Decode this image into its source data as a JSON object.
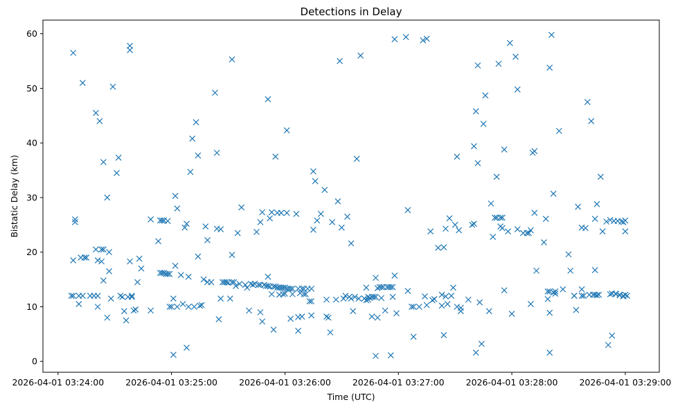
{
  "chart_data": {
    "type": "scatter",
    "title": "Detections in Delay",
    "xlabel": "Time (UTC)",
    "ylabel": "Bistatic Delay (km)",
    "x_unit": "seconds after 2026-04-01 03:24:00",
    "xlim": [
      -8,
      318
    ],
    "ylim": [
      -2,
      62.5
    ],
    "x_ticks": [
      {
        "value": 0,
        "label": "2026-04-01 03:24:00"
      },
      {
        "value": 60,
        "label": "2026-04-01 03:25:00"
      },
      {
        "value": 120,
        "label": "2026-04-01 03:26:00"
      },
      {
        "value": 180,
        "label": "2026-04-01 03:27:00"
      },
      {
        "value": 240,
        "label": "2026-04-01 03:28:00"
      },
      {
        "value": 300,
        "label": "2026-04-01 03:29:00"
      }
    ],
    "y_ticks": [
      {
        "value": 0,
        "label": "0"
      },
      {
        "value": 10,
        "label": "10"
      },
      {
        "value": 20,
        "label": "20"
      },
      {
        "value": 30,
        "label": "30"
      },
      {
        "value": 40,
        "label": "40"
      },
      {
        "value": 50,
        "label": "50"
      },
      {
        "value": 60,
        "label": "60"
      }
    ],
    "marker": "x",
    "color": "#1f77b4",
    "points": [
      [
        7,
        12
      ],
      [
        8,
        12
      ],
      [
        8,
        18.5
      ],
      [
        8,
        56.5
      ],
      [
        9,
        26
      ],
      [
        9,
        25.5
      ],
      [
        11,
        10.5
      ],
      [
        11,
        12
      ],
      [
        12,
        19
      ],
      [
        13,
        12
      ],
      [
        13,
        51
      ],
      [
        14,
        19
      ],
      [
        15,
        19
      ],
      [
        17,
        12
      ],
      [
        19,
        12
      ],
      [
        20,
        45.5
      ],
      [
        20,
        20.5
      ],
      [
        21,
        10
      ],
      [
        21,
        18.5
      ],
      [
        21,
        12
      ],
      [
        22,
        44
      ],
      [
        23,
        18.3
      ],
      [
        23,
        20.5
      ],
      [
        24,
        20.5
      ],
      [
        24,
        36.5
      ],
      [
        24,
        14.8
      ],
      [
        26,
        8
      ],
      [
        26,
        30
      ],
      [
        27,
        16.5
      ],
      [
        27,
        20
      ],
      [
        28,
        11.5
      ],
      [
        29,
        50.3
      ],
      [
        31,
        34.5
      ],
      [
        32,
        37.3
      ],
      [
        33,
        12
      ],
      [
        34,
        11.8
      ],
      [
        35,
        9.2
      ],
      [
        36,
        7.5
      ],
      [
        37,
        11.8
      ],
      [
        38,
        18.3
      ],
      [
        38,
        57
      ],
      [
        38,
        57.8
      ],
      [
        39,
        12
      ],
      [
        39,
        11.8
      ],
      [
        40,
        9.3
      ],
      [
        41,
        9.5
      ],
      [
        42,
        14.5
      ],
      [
        43,
        18.8
      ],
      [
        44,
        17
      ],
      [
        49,
        26
      ],
      [
        49,
        9.3
      ],
      [
        53,
        22
      ],
      [
        54,
        16.2
      ],
      [
        54,
        25.8
      ],
      [
        55,
        16.2
      ],
      [
        55,
        25.8
      ],
      [
        56,
        16.2
      ],
      [
        56,
        25.8
      ],
      [
        57,
        16
      ],
      [
        58,
        16
      ],
      [
        58,
        25.7
      ],
      [
        59,
        10
      ],
      [
        59,
        16
      ],
      [
        60,
        10
      ],
      [
        61,
        1.2
      ],
      [
        61,
        11.5
      ],
      [
        62,
        17.5
      ],
      [
        62,
        30.3
      ],
      [
        63,
        10
      ],
      [
        63,
        28
      ],
      [
        65,
        15.8
      ],
      [
        66,
        10.5
      ],
      [
        67,
        24.5
      ],
      [
        68,
        25.2
      ],
      [
        68,
        2.5
      ],
      [
        69,
        15.5
      ],
      [
        69,
        10
      ],
      [
        70,
        34.7
      ],
      [
        71,
        40.8
      ],
      [
        72,
        10
      ],
      [
        73,
        43.8
      ],
      [
        74,
        37.7
      ],
      [
        74,
        19.2
      ],
      [
        75,
        10.2
      ],
      [
        76,
        10.3
      ],
      [
        77,
        15
      ],
      [
        78,
        24.7
      ],
      [
        79,
        22.2
      ],
      [
        79,
        14.5
      ],
      [
        81,
        14.5
      ],
      [
        83,
        49.2
      ],
      [
        84,
        38.2
      ],
      [
        84,
        24.3
      ],
      [
        85,
        7.7
      ],
      [
        86,
        11.5
      ],
      [
        86,
        24.2
      ],
      [
        87,
        14.5
      ],
      [
        88,
        14.5
      ],
      [
        89,
        14.5
      ],
      [
        90,
        14.4
      ],
      [
        91,
        11.5
      ],
      [
        92,
        14.5
      ],
      [
        92,
        55.3
      ],
      [
        92,
        19.5
      ],
      [
        93,
        14.5
      ],
      [
        94,
        13.8
      ],
      [
        95,
        23.5
      ],
      [
        96,
        14.2
      ],
      [
        97,
        28.2
      ],
      [
        99,
        14
      ],
      [
        100,
        13.5
      ],
      [
        101,
        9.3
      ],
      [
        102,
        14.2
      ],
      [
        103,
        14
      ],
      [
        104,
        14.2
      ],
      [
        105,
        23.7
      ],
      [
        106,
        14
      ],
      [
        107,
        14
      ],
      [
        107,
        9
      ],
      [
        107,
        25.5
      ],
      [
        108,
        7.3
      ],
      [
        108,
        27.3
      ],
      [
        109,
        14
      ],
      [
        110,
        13.8
      ],
      [
        111,
        13.8
      ],
      [
        111,
        15.5
      ],
      [
        111,
        48
      ],
      [
        112,
        13.7
      ],
      [
        112,
        26.2
      ],
      [
        113,
        12.3
      ],
      [
        113,
        27.3
      ],
      [
        114,
        13.7
      ],
      [
        114,
        5.8
      ],
      [
        115,
        13.7
      ],
      [
        115,
        37.5
      ],
      [
        116,
        13.5
      ],
      [
        116,
        27.2
      ],
      [
        117,
        12.2
      ],
      [
        117,
        13.5
      ],
      [
        118,
        13.5
      ],
      [
        118,
        27.2
      ],
      [
        119,
        12.3
      ],
      [
        119,
        13.5
      ],
      [
        120,
        12.4
      ],
      [
        120,
        13.5
      ],
      [
        121,
        13.3
      ],
      [
        121,
        42.3
      ],
      [
        121,
        27.2
      ],
      [
        122,
        13.3
      ],
      [
        123,
        7.8
      ],
      [
        123,
        13.3
      ],
      [
        124,
        12.3
      ],
      [
        124,
        13.3
      ],
      [
        126,
        27
      ],
      [
        127,
        8.1
      ],
      [
        127,
        5.6
      ],
      [
        127,
        13.3
      ],
      [
        128,
        12.5
      ],
      [
        129,
        13.3
      ],
      [
        129,
        8.2
      ],
      [
        130,
        12.3
      ],
      [
        130,
        13.3
      ],
      [
        131,
        12.3
      ],
      [
        132,
        13.3
      ],
      [
        133,
        11
      ],
      [
        134,
        11
      ],
      [
        134,
        13.3
      ],
      [
        134,
        8.4
      ],
      [
        135,
        24.1
      ],
      [
        135,
        34.8
      ],
      [
        136,
        33
      ],
      [
        137,
        25.8
      ],
      [
        139,
        27
      ],
      [
        141,
        31.4
      ],
      [
        142,
        11.3
      ],
      [
        142,
        8.2
      ],
      [
        143,
        8
      ],
      [
        144,
        5.3
      ],
      [
        145,
        25.5
      ],
      [
        147,
        11.3
      ],
      [
        148,
        29.3
      ],
      [
        149,
        55
      ],
      [
        150,
        24.5
      ],
      [
        151,
        11.5
      ],
      [
        152,
        12
      ],
      [
        153,
        26.5
      ],
      [
        154,
        11.8
      ],
      [
        155,
        11.5
      ],
      [
        155,
        21.6
      ],
      [
        156,
        9.2
      ],
      [
        157,
        11.8
      ],
      [
        158,
        37.1
      ],
      [
        159,
        11.5
      ],
      [
        160,
        56
      ],
      [
        162,
        11.5
      ],
      [
        163,
        11.2
      ],
      [
        163,
        13.5
      ],
      [
        164,
        11.3
      ],
      [
        164,
        11.8
      ],
      [
        165,
        11.6
      ],
      [
        166,
        11.8
      ],
      [
        166,
        8.2
      ],
      [
        167,
        11.8
      ],
      [
        168,
        1
      ],
      [
        168,
        15.3
      ],
      [
        168,
        11.8
      ],
      [
        169,
        13.4
      ],
      [
        169,
        8
      ],
      [
        170,
        13.6
      ],
      [
        171,
        11.6
      ],
      [
        171,
        13.6
      ],
      [
        172,
        13.6
      ],
      [
        173,
        9.3
      ],
      [
        174,
        13.6
      ],
      [
        175,
        13.6
      ],
      [
        176,
        1.1
      ],
      [
        176,
        13.6
      ],
      [
        177,
        11.8
      ],
      [
        177,
        13.6
      ],
      [
        178,
        15.7
      ],
      [
        178,
        59
      ],
      [
        179,
        8.8
      ],
      [
        184,
        59.4
      ],
      [
        185,
        27.7
      ],
      [
        185,
        12.9
      ],
      [
        187,
        10
      ],
      [
        188,
        4.5
      ],
      [
        188,
        10
      ],
      [
        191,
        10
      ],
      [
        193,
        58.8
      ],
      [
        194,
        11.9
      ],
      [
        195,
        10.3
      ],
      [
        195,
        59.1
      ],
      [
        197,
        23.8
      ],
      [
        198,
        11.2
      ],
      [
        199,
        11.4
      ],
      [
        201,
        20.8
      ],
      [
        203,
        12.2
      ],
      [
        203,
        10.2
      ],
      [
        204,
        4.8
      ],
      [
        204,
        20.9
      ],
      [
        205,
        24.3
      ],
      [
        205,
        11.9
      ],
      [
        206,
        10.5
      ],
      [
        207,
        26.2
      ],
      [
        208,
        12
      ],
      [
        209,
        13.5
      ],
      [
        210,
        25
      ],
      [
        211,
        10
      ],
      [
        211,
        37.5
      ],
      [
        212,
        24
      ],
      [
        213,
        9.8
      ],
      [
        213,
        9.2
      ],
      [
        217,
        11.3
      ],
      [
        219,
        25
      ],
      [
        220,
        25.2
      ],
      [
        220,
        39.4
      ],
      [
        221,
        45.8
      ],
      [
        221,
        1.6
      ],
      [
        222,
        36.3
      ],
      [
        222,
        54.2
      ],
      [
        223,
        10.8
      ],
      [
        224,
        3.2
      ],
      [
        225,
        43.5
      ],
      [
        226,
        48.7
      ],
      [
        228,
        9.2
      ],
      [
        229,
        28.9
      ],
      [
        230,
        22.8
      ],
      [
        231,
        26.3
      ],
      [
        232,
        26.3
      ],
      [
        232,
        33.8
      ],
      [
        233,
        54.5
      ],
      [
        234,
        26.3
      ],
      [
        234,
        24.7
      ],
      [
        235,
        26.3
      ],
      [
        235,
        24.4
      ],
      [
        236,
        38.8
      ],
      [
        236,
        13
      ],
      [
        238,
        23.8
      ],
      [
        239,
        58.3
      ],
      [
        240,
        8.7
      ],
      [
        242,
        55.8
      ],
      [
        243,
        49.8
      ],
      [
        243,
        24.2
      ],
      [
        246,
        23.5
      ],
      [
        248,
        23.5
      ],
      [
        249,
        23.5
      ],
      [
        250,
        10.5
      ],
      [
        250,
        24
      ],
      [
        251,
        38.2
      ],
      [
        252,
        38.5
      ],
      [
        252,
        27.2
      ],
      [
        253,
        16.6
      ],
      [
        257,
        21.8
      ],
      [
        258,
        26.1
      ],
      [
        259,
        11.4
      ],
      [
        259,
        12.8
      ],
      [
        260,
        8.9
      ],
      [
        260,
        1.6
      ],
      [
        260,
        53.8
      ],
      [
        260,
        12.8
      ],
      [
        261,
        59.8
      ],
      [
        262,
        30.7
      ],
      [
        262,
        12.6
      ],
      [
        263,
        12.8
      ],
      [
        263,
        12.4
      ],
      [
        265,
        42.2
      ],
      [
        267,
        13.2
      ],
      [
        270,
        19.6
      ],
      [
        271,
        16.6
      ],
      [
        273,
        12
      ],
      [
        273,
        12
      ],
      [
        274,
        9.4
      ],
      [
        275,
        28.3
      ],
      [
        277,
        24.5
      ],
      [
        277,
        12
      ],
      [
        277,
        13.2
      ],
      [
        278,
        12
      ],
      [
        279,
        24.4
      ],
      [
        280,
        47.5
      ],
      [
        281,
        12.2
      ],
      [
        282,
        44
      ],
      [
        283,
        12.2
      ],
      [
        284,
        16.7
      ],
      [
        284,
        12.2
      ],
      [
        284,
        26.1
      ],
      [
        285,
        28.8
      ],
      [
        285,
        12.1
      ],
      [
        286,
        12.2
      ],
      [
        287,
        33.8
      ],
      [
        288,
        23.8
      ],
      [
        290,
        25.6
      ],
      [
        291,
        3
      ],
      [
        292,
        12.3
      ],
      [
        292,
        25.9
      ],
      [
        293,
        4.7
      ],
      [
        293,
        12.4
      ],
      [
        294,
        25.7
      ],
      [
        295,
        12.3
      ],
      [
        295,
        12.4
      ],
      [
        296,
        25.7
      ],
      [
        297,
        12.1
      ],
      [
        297,
        12.2
      ],
      [
        298,
        25.6
      ],
      [
        299,
        25.5
      ],
      [
        299,
        12
      ],
      [
        299,
        11.9
      ],
      [
        300,
        12.2
      ],
      [
        300,
        23.8
      ],
      [
        300,
        25.8
      ],
      [
        301,
        12
      ]
    ]
  }
}
